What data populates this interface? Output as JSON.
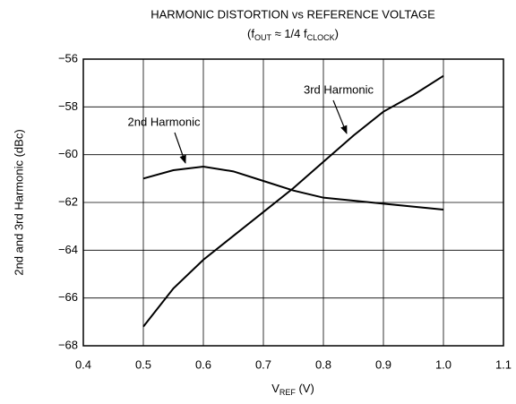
{
  "chart_data": {
    "type": "line",
    "title": "HARMONIC DISTORTION vs REFERENCE VOLTAGE",
    "subtitle_parts": [
      "(f",
      "OUT",
      " ≈ 1/4 f",
      "CLOCK",
      ")"
    ],
    "x_label_parts": [
      "V",
      "REF",
      " (V)"
    ],
    "y_label": "2nd and 3rd Harmonic (dBc)",
    "xlim": [
      0.4,
      1.1
    ],
    "xticks": [
      0.4,
      0.5,
      0.6,
      0.7,
      0.8,
      0.9,
      {
        "value": 1,
        "label": "1.0"
      },
      1.1
    ],
    "ylim": [
      -68,
      -56
    ],
    "yticks": [
      {
        "value": -68,
        "label": "−68"
      },
      {
        "value": -66,
        "label": "−66"
      },
      {
        "value": -64,
        "label": "−64"
      },
      {
        "value": -62,
        "label": "−62"
      },
      {
        "value": -60,
        "label": "−60"
      },
      {
        "value": -58,
        "label": "−58"
      },
      {
        "value": -56,
        "label": "−56"
      }
    ],
    "grid": true,
    "annotations": [
      "2nd Harmonic",
      "3rd Harmonic"
    ],
    "series": [
      {
        "color": "#000000",
        "x": [
          0.5,
          0.55,
          0.6,
          0.65,
          0.7,
          0.75,
          0.8,
          0.9,
          1.0
        ],
        "values": [
          -61.0,
          -60.65,
          -60.5,
          -60.7,
          -61.1,
          -61.5,
          -61.8,
          -62.05,
          -62.3
        ]
      },
      {
        "color": "#000000",
        "x": [
          0.5,
          0.55,
          0.6,
          0.65,
          0.7,
          0.75,
          0.8,
          0.85,
          0.9,
          0.95,
          1.0
        ],
        "values": [
          -67.2,
          -65.6,
          -64.4,
          -63.4,
          -62.4,
          -61.4,
          -60.3,
          -59.2,
          -58.2,
          -57.5,
          -56.7
        ]
      }
    ]
  }
}
